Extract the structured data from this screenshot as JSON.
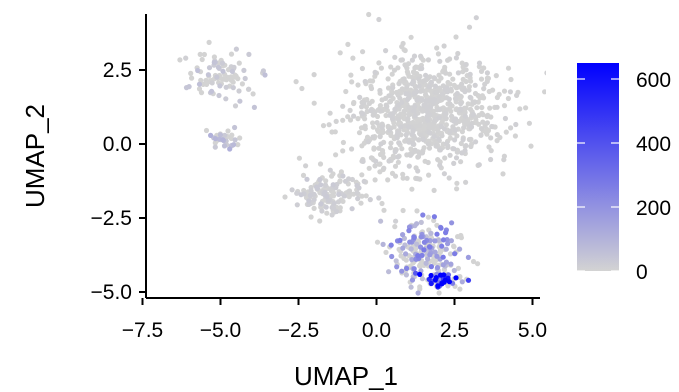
{
  "chart_data": {
    "type": "scatter",
    "title": "",
    "xlabel": "UMAP_1",
    "ylabel": "UMAP_2",
    "xlim": [
      -7.5,
      5.4
    ],
    "ylim": [
      -5.2,
      4.0
    ],
    "x_ticks": [
      -7.5,
      -5.0,
      -2.5,
      0.0,
      2.5,
      5.0
    ],
    "x_tick_labels": [
      "−7.5",
      "−5.0",
      "−2.5",
      "0.0",
      "2.5",
      "5.0"
    ],
    "y_ticks": [
      -5.0,
      -2.5,
      0.0,
      2.5
    ],
    "y_tick_labels": [
      "−5.0",
      "−2.5",
      "0.0",
      "2.5"
    ],
    "grid": false,
    "legend": {
      "placement": "right",
      "type": "colorbar",
      "color_low": "#d3d3d3",
      "color_high": "#0000ff",
      "min": 0,
      "max": 650,
      "ticks": [
        0,
        200,
        400,
        600
      ],
      "tick_labels": [
        "0",
        "200",
        "400",
        "600"
      ]
    },
    "colors": {
      "point_base": "#d3d3d3",
      "point_high": "#0000ff",
      "axis": "#000000"
    },
    "clusters": [
      {
        "name": "left-upper arm",
        "center": [
          -5.0,
          2.3
        ],
        "spread": [
          0.9,
          0.8
        ],
        "n": 90,
        "expression_mean": 30
      },
      {
        "name": "left hook",
        "center": [
          -4.9,
          0.2
        ],
        "spread": [
          0.4,
          0.4
        ],
        "n": 35,
        "expression_mean": 60
      },
      {
        "name": "main body",
        "center": [
          1.6,
          1.0
        ],
        "spread": [
          2.0,
          1.6
        ],
        "n": 900,
        "expression_mean": 5
      },
      {
        "name": "left bridge",
        "center": [
          -1.5,
          -1.7
        ],
        "spread": [
          1.0,
          0.5
        ],
        "n": 140,
        "expression_mean": 15
      },
      {
        "name": "lower tail",
        "center": [
          1.6,
          -3.6
        ],
        "spread": [
          1.0,
          0.9
        ],
        "n": 220,
        "expression_mean": 140
      },
      {
        "name": "bottom hotspot",
        "center": [
          2.0,
          -4.6
        ],
        "spread": [
          0.6,
          0.25
        ],
        "n": 60,
        "expression_mean": 450
      }
    ]
  }
}
